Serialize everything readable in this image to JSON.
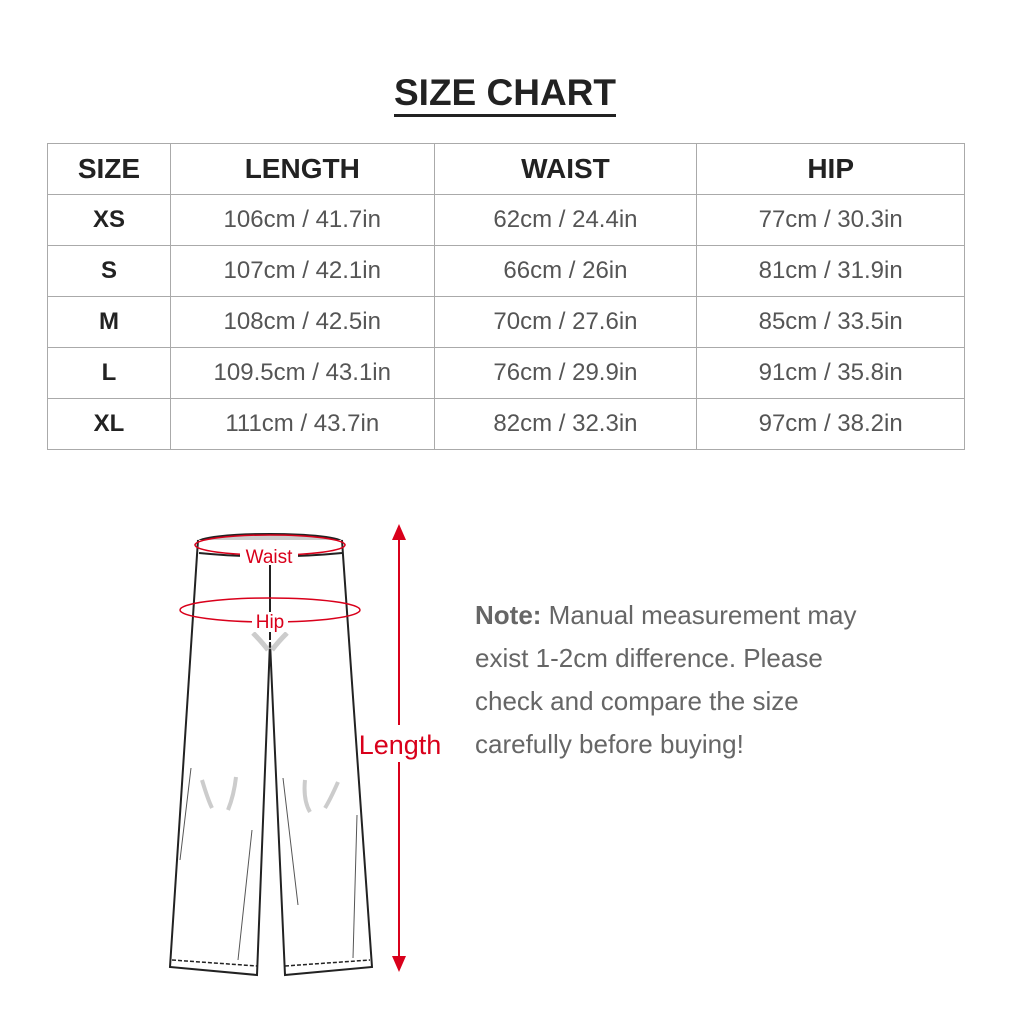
{
  "title": "SIZE CHART",
  "table": {
    "headers": [
      "SIZE",
      "LENGTH",
      "WAIST",
      "HIP"
    ],
    "rows": [
      [
        "XS",
        "106cm / 41.7in",
        "62cm / 24.4in",
        "77cm / 30.3in"
      ],
      [
        "S",
        "107cm / 42.1in",
        "66cm / 26in",
        "81cm / 31.9in"
      ],
      [
        "M",
        "108cm / 42.5in",
        "70cm / 27.6in",
        "85cm / 33.5in"
      ],
      [
        "L",
        "109.5cm / 43.1in",
        "76cm / 29.9in",
        "91cm / 35.8in"
      ],
      [
        "XL",
        "111cm / 43.7in",
        "82cm / 32.3in",
        "97cm / 38.2in"
      ]
    ]
  },
  "diagram": {
    "waist_label": "Waist",
    "hip_label": "Hip",
    "length_label": "Length",
    "accent_color": "#d9001b"
  },
  "note": {
    "label": "Note:",
    "text": " Manual measurement may exist 1-2cm difference. Please check and compare the size carefully before buying!"
  }
}
